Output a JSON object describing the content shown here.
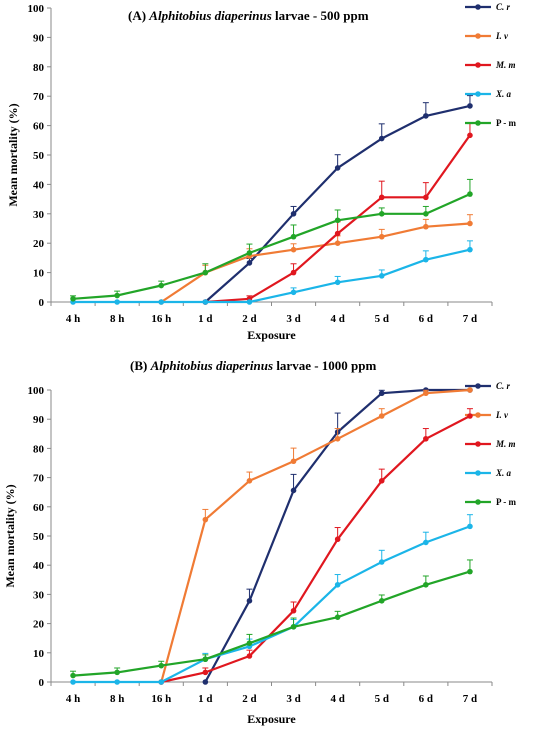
{
  "chart_data": [
    {
      "type": "line",
      "title": {
        "prefix": "(A) ",
        "species": "Alphitobius diaperinus",
        "suffix": " larvae - 500 ppm"
      },
      "xlabel": "Exposure",
      "ylabel": "Mean mortality (%)",
      "ylim": [
        0,
        100
      ],
      "yticks": [
        0,
        10,
        20,
        30,
        40,
        50,
        60,
        70,
        80,
        90,
        100
      ],
      "categories": [
        "4 h",
        "8 h",
        "16 h",
        "1 d",
        "2 d",
        "3 d",
        "4 d",
        "5 d",
        "6 d",
        "7 d"
      ],
      "legend_position": "top-right",
      "grid": false,
      "series": [
        {
          "name": "C. r",
          "italic": true,
          "color": "#1f2f6e",
          "values": [
            null,
            null,
            null,
            0,
            13.3,
            30,
            45.6,
            55.6,
            63.3,
            66.7
          ],
          "errors": [
            null,
            null,
            null,
            0,
            1.5,
            2.5,
            4.5,
            5,
            4.5,
            3.5
          ]
        },
        {
          "name": "I. v",
          "italic": true,
          "color": "#f07b35",
          "values": [
            null,
            null,
            0,
            10,
            15.6,
            17.8,
            20,
            22.2,
            25.6,
            26.7
          ],
          "errors": [
            null,
            null,
            0,
            2.5,
            2.5,
            2,
            2.5,
            2.5,
            2.5,
            3
          ]
        },
        {
          "name": "M. m",
          "italic": true,
          "color": "#e0171f",
          "values": [
            null,
            null,
            null,
            0,
            1.1,
            10,
            23.3,
            35.6,
            35.6,
            56.7
          ],
          "errors": [
            null,
            null,
            null,
            0,
            1,
            3,
            4,
            5.5,
            5,
            4
          ]
        },
        {
          "name": "X. a",
          "italic": true,
          "color": "#1bb5e8",
          "values": [
            0,
            0,
            0,
            0,
            0,
            3.3,
            6.7,
            8.9,
            14.4,
            17.8
          ],
          "errors": [
            0,
            0,
            0,
            0,
            0,
            1.5,
            2,
            2,
            3,
            3
          ]
        },
        {
          "name": "P - m",
          "italic": false,
          "color": "#22a528",
          "values": [
            1.1,
            2.2,
            5.6,
            10,
            16.7,
            22.2,
            27.8,
            30,
            30,
            36.7
          ],
          "errors": [
            1,
            1.5,
            1.5,
            3,
            3,
            4,
            3.5,
            2,
            2.5,
            5
          ]
        }
      ]
    },
    {
      "type": "line",
      "title": {
        "prefix": "(B) ",
        "species": "Alphitobius diaperinus",
        "suffix": " larvae - 1000 ppm"
      },
      "xlabel": "Exposure",
      "ylabel": "Mean mortality (%)",
      "ylim": [
        0,
        100
      ],
      "yticks": [
        0,
        10,
        20,
        30,
        40,
        50,
        60,
        70,
        80,
        90,
        100
      ],
      "categories": [
        "4 h",
        "8 h",
        "16 h",
        "1 d",
        "2 d",
        "3 d",
        "4 d",
        "5 d",
        "6 d",
        "7 d"
      ],
      "legend_position": "top-right",
      "grid": false,
      "series": [
        {
          "name": "C. r",
          "italic": true,
          "color": "#1f2f6e",
          "values": [
            null,
            null,
            null,
            0,
            27.8,
            65.6,
            85.6,
            98.9,
            100,
            100
          ],
          "errors": [
            null,
            null,
            null,
            0,
            4,
            5.5,
            6.5,
            1,
            0,
            0
          ]
        },
        {
          "name": "I. v",
          "italic": true,
          "color": "#f07b35",
          "values": [
            null,
            null,
            0,
            55.6,
            68.9,
            75.6,
            83.3,
            91.1,
            98.9,
            100
          ],
          "errors": [
            null,
            null,
            0,
            3.5,
            3,
            4.5,
            3.5,
            2.5,
            1,
            0
          ]
        },
        {
          "name": "M. m",
          "italic": true,
          "color": "#e0171f",
          "values": [
            null,
            null,
            0,
            3.3,
            8.9,
            24.4,
            48.9,
            68.9,
            83.3,
            91.1
          ],
          "errors": [
            null,
            null,
            0,
            1.5,
            2,
            3,
            4,
            4,
            3.5,
            2.5
          ]
        },
        {
          "name": "X. a",
          "italic": true,
          "color": "#1bb5e8",
          "values": [
            0,
            0,
            0,
            7.8,
            12.2,
            18.9,
            33.3,
            41.1,
            47.8,
            53.3
          ],
          "errors": [
            0,
            0,
            0,
            2,
            2.5,
            2.5,
            3.5,
            4,
            3.5,
            4
          ]
        },
        {
          "name": "P - m",
          "italic": false,
          "color": "#22a528",
          "values": [
            2.2,
            3.3,
            5.6,
            7.8,
            13.3,
            18.9,
            22.2,
            27.8,
            33.3,
            37.8
          ],
          "errors": [
            1.5,
            1.5,
            1.5,
            1.5,
            3,
            3,
            2,
            2,
            3,
            4
          ]
        }
      ]
    }
  ]
}
